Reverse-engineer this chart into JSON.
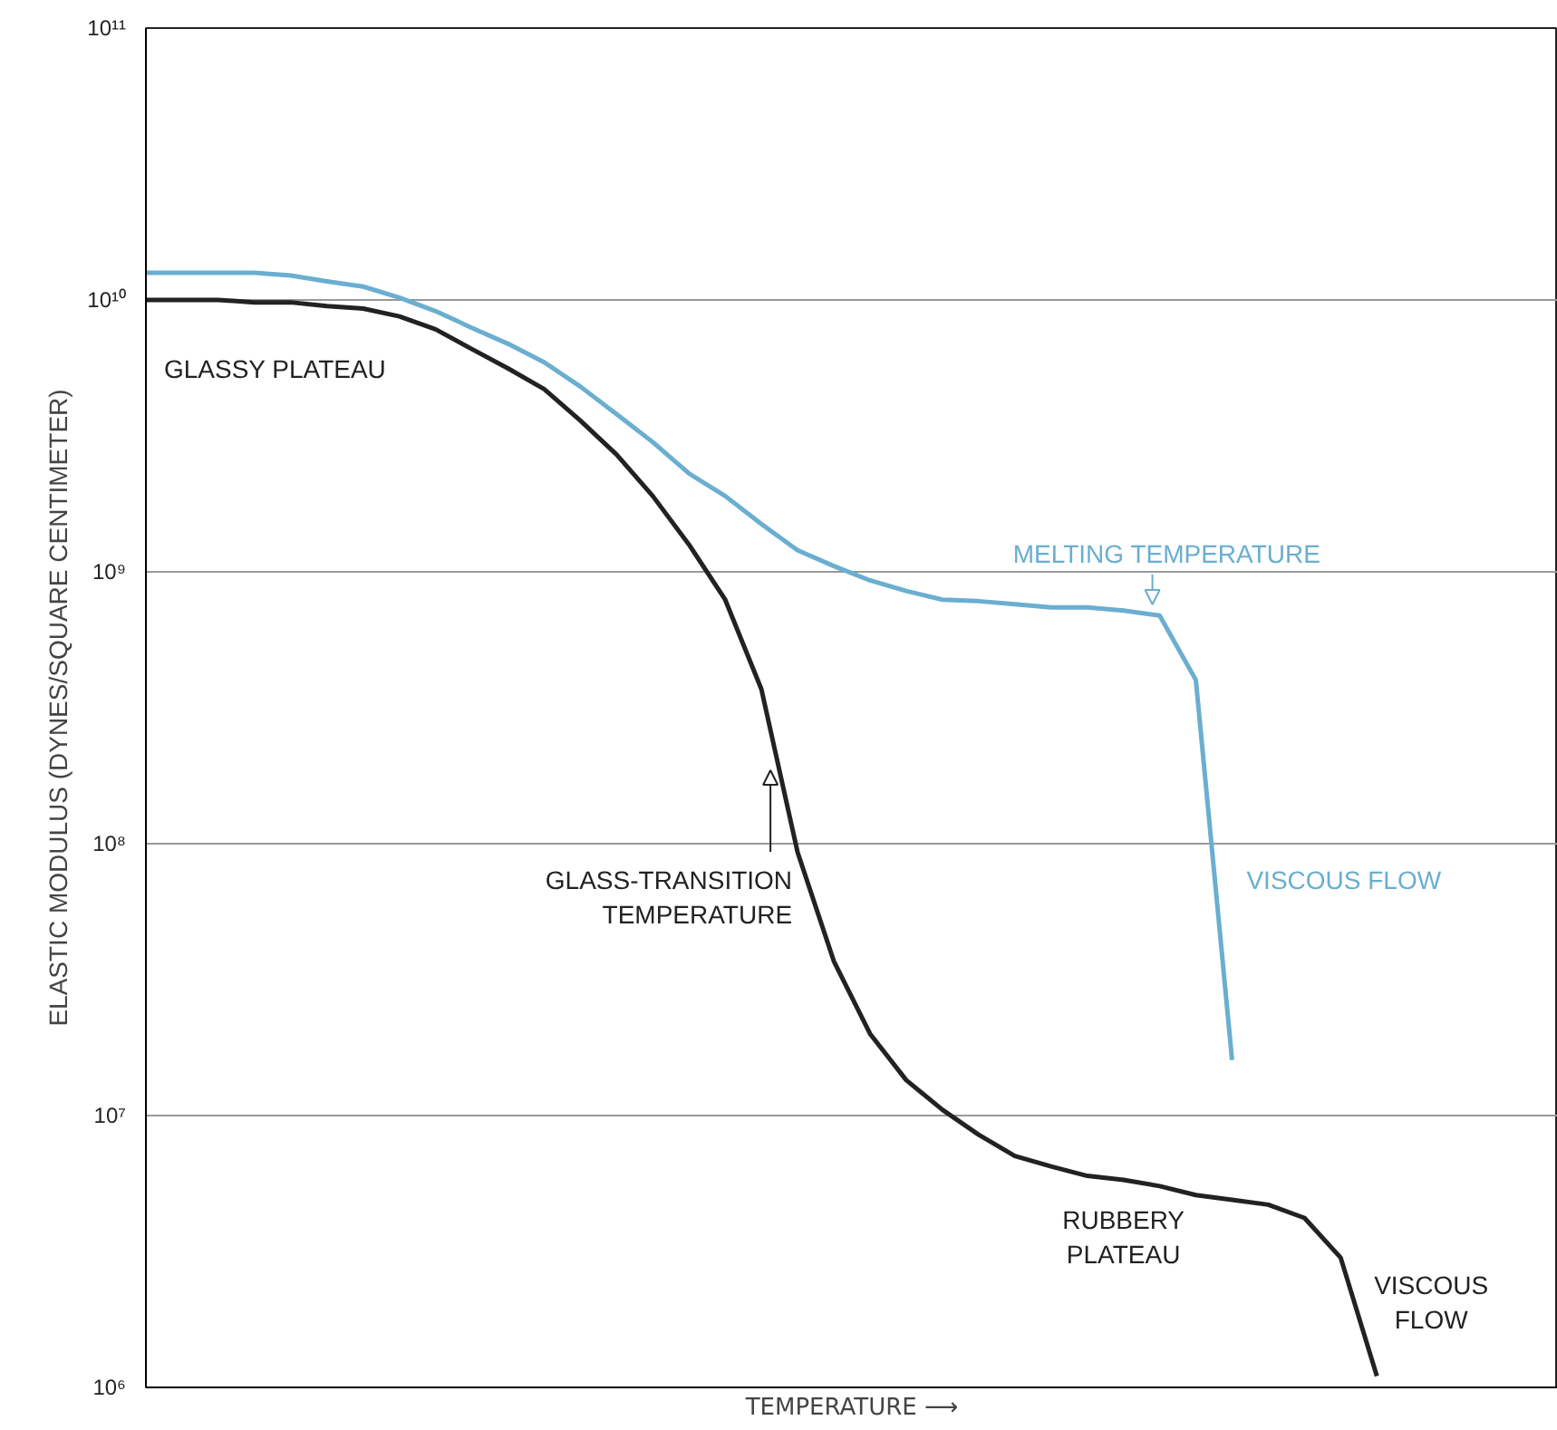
{
  "chart_data": {
    "type": "line",
    "xlabel": "TEMPERATURE ⟶",
    "ylabel": "ELASTIC MODULUS (DYNES/SQUARE CENTIMETER)",
    "categories": [
      null,
      null,
      null,
      null,
      null,
      null,
      null,
      null,
      null,
      null,
      null,
      null,
      null,
      null,
      null,
      null,
      null,
      null,
      null,
      null,
      null,
      null,
      null,
      null,
      null,
      null,
      null,
      null,
      null,
      null,
      null,
      null,
      null,
      null,
      null,
      null,
      null,
      null,
      null,
      null
    ],
    "series": [
      {
        "color": "#6aaed0",
        "values": [
          12600000000.0,
          12600000000.0,
          12600000000.0,
          12600000000.0,
          12300000000.0,
          11700000000.0,
          11200000000.0,
          10200000000.0,
          9100000000.0,
          7900000000.0,
          6900000000.0,
          5900000000.0,
          4800000000.0,
          3800000000.0,
          3000000000.0,
          2300000000.0,
          1900000000.0,
          1500000000.0,
          1200000000.0,
          1050000000.0,
          930000000.0,
          850000000.0,
          790000000.0,
          780000000.0,
          760000000.0,
          740000000.0,
          740000000.0,
          720000000.0,
          690000000.0,
          400000000.0,
          16000000.0,
          null,
          null,
          null,
          null,
          null,
          null,
          null,
          null,
          null
        ]
      },
      {
        "color": "#222222",
        "values": [
          10000000000.0,
          10000000000.0,
          10000000000.0,
          9800000000.0,
          9800000000.0,
          9500000000.0,
          9300000000.0,
          8700000000.0,
          7800000000.0,
          6600000000.0,
          5600000000.0,
          4700000000.0,
          3600000000.0,
          2700000000.0,
          1900000000.0,
          1260000000.0,
          790000000.0,
          370000000.0,
          93000000.0,
          37000000.0,
          20000000.0,
          13500000.0,
          10500000.0,
          8500000.0,
          7100000.0,
          6500000.0,
          6000000.0,
          5800000.0,
          5500000.0,
          5100000.0,
          4900000.0,
          4700000.0,
          4200000.0,
          3000000.0,
          1100000.0,
          null,
          null,
          null,
          null,
          null
        ]
      }
    ],
    "log": true,
    "ylim": [
      1000000.0,
      100000000000.0
    ],
    "yticks": [
      {
        "value": 1000000.0,
        "label": "10⁶"
      },
      {
        "value": 10000000.0,
        "label": "10⁷"
      },
      {
        "value": 100000000.0,
        "label": "10⁸"
      },
      {
        "value": 1000000000.0,
        "label": "10⁹"
      },
      {
        "value": 10000000000.0,
        "label": "10¹⁰"
      },
      {
        "value": 100000000000.0,
        "label": "10¹¹"
      }
    ],
    "grid": "y",
    "tick_labels": "y",
    "annotations": [
      "GLASSY PLATEAU",
      "MELTING TEMPERATURE",
      "GLASS-TRANSITION\nTEMPERATURE",
      "VISCOUS FLOW",
      "RUBBERY\nPLATEAU",
      "VISCOUS\nFLOW"
    ]
  }
}
